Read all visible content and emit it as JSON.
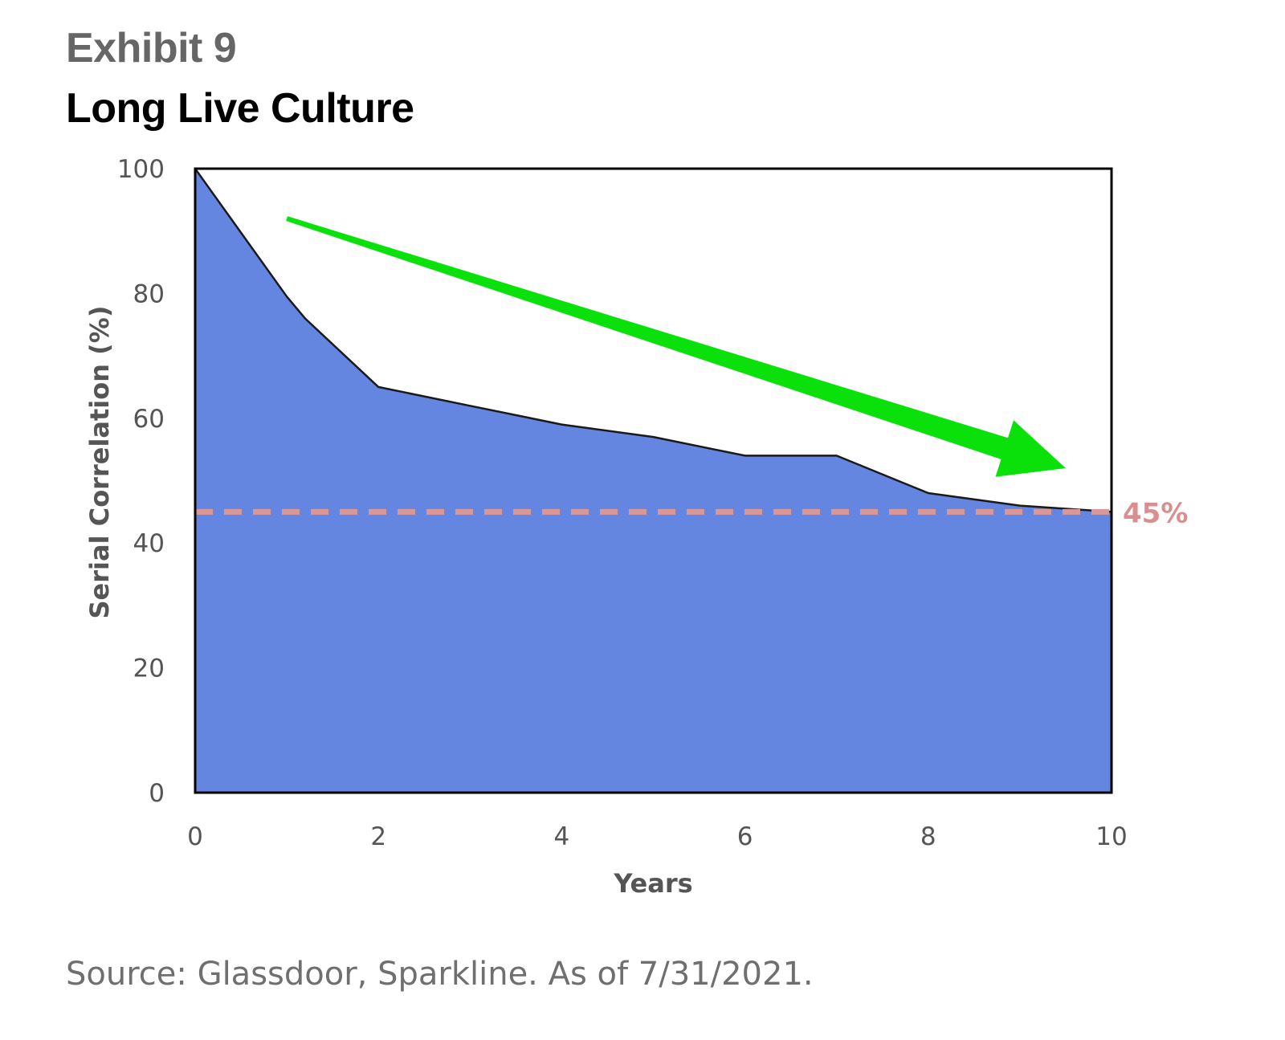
{
  "header": {
    "exhibit": "Exhibit 9",
    "title": "Long Live Culture"
  },
  "footer": {
    "source": "Source: Glassdoor, Sparkline. As of 7/31/2021."
  },
  "colors": {
    "area_fill": "#6586e0",
    "area_line": "#1a1a1a",
    "reference_line": "#d99898",
    "arrow": "#0ae00a",
    "frame": "#000000"
  },
  "chart_data": {
    "type": "area",
    "title": "Long Live Culture",
    "xlabel": "Years",
    "ylabel": "Serial Correlation (%)",
    "xlim": [
      0,
      10
    ],
    "ylim": [
      0,
      100
    ],
    "xticks": [
      0,
      2,
      4,
      6,
      8,
      10
    ],
    "yticks": [
      0,
      20,
      40,
      60,
      80,
      100
    ],
    "grid": false,
    "series": [
      {
        "x": [
          0,
          1,
          1.2,
          2,
          3,
          4,
          5,
          6,
          7,
          8,
          9,
          10
        ],
        "values": [
          100,
          79.5,
          76,
          65,
          62,
          59,
          57,
          54,
          54,
          48,
          46,
          45
        ]
      }
    ],
    "reference_line": {
      "y": 45,
      "label": "45%",
      "style": "dashed"
    },
    "annotation_arrow": {
      "description": "green downward trend arrow",
      "from": [
        1,
        92
      ],
      "to": [
        9.5,
        52
      ]
    }
  }
}
